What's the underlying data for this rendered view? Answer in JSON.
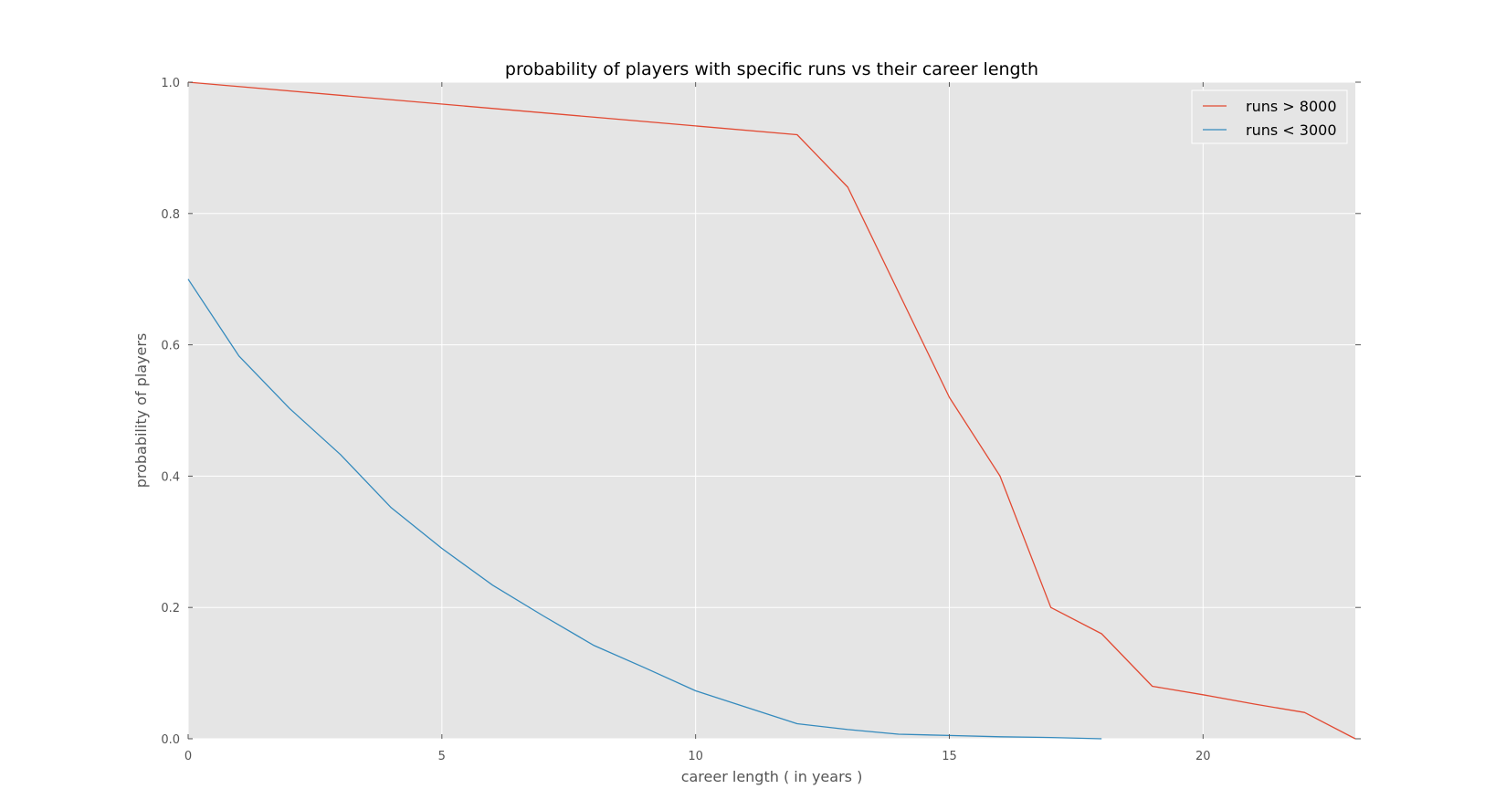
{
  "chart_data": {
    "type": "line",
    "title": "probability of players with specific runs vs their career length",
    "xlabel": "career length ( in years )",
    "ylabel": "probability of players",
    "xlim": [
      0,
      23
    ],
    "ylim": [
      0.0,
      1.0
    ],
    "xticks": [
      0,
      5,
      10,
      15,
      20
    ],
    "xtick_labels": [
      "0",
      "5",
      "10",
      "15",
      "20"
    ],
    "yticks": [
      0.0,
      0.2,
      0.4,
      0.6,
      0.8,
      1.0
    ],
    "ytick_labels": [
      "0.0",
      "0.2",
      "0.4",
      "0.6",
      "0.8",
      "1.0"
    ],
    "grid": true,
    "legend_position": "top-right",
    "background_color": "#e5e5e5",
    "series": [
      {
        "name": "runs > 8000",
        "color": "#e24a33",
        "x": [
          0,
          12,
          13,
          14,
          15,
          16,
          17,
          18,
          19,
          20,
          21,
          22,
          23
        ],
        "y": [
          1.0,
          0.92,
          0.84,
          0.68,
          0.52,
          0.4,
          0.2,
          0.16,
          0.08,
          0.067,
          0.053,
          0.04,
          0.0
        ]
      },
      {
        "name": "runs < 3000",
        "color": "#348abd",
        "x": [
          0,
          1,
          2,
          3,
          4,
          5,
          6,
          7,
          8,
          9,
          10,
          11,
          12,
          13,
          14,
          15,
          16,
          17,
          18
        ],
        "y": [
          0.7,
          0.583,
          0.503,
          0.433,
          0.352,
          0.29,
          0.234,
          0.187,
          0.142,
          0.108,
          0.073,
          0.048,
          0.023,
          0.014,
          0.007,
          0.005,
          0.003,
          0.002,
          0.0
        ]
      }
    ]
  }
}
